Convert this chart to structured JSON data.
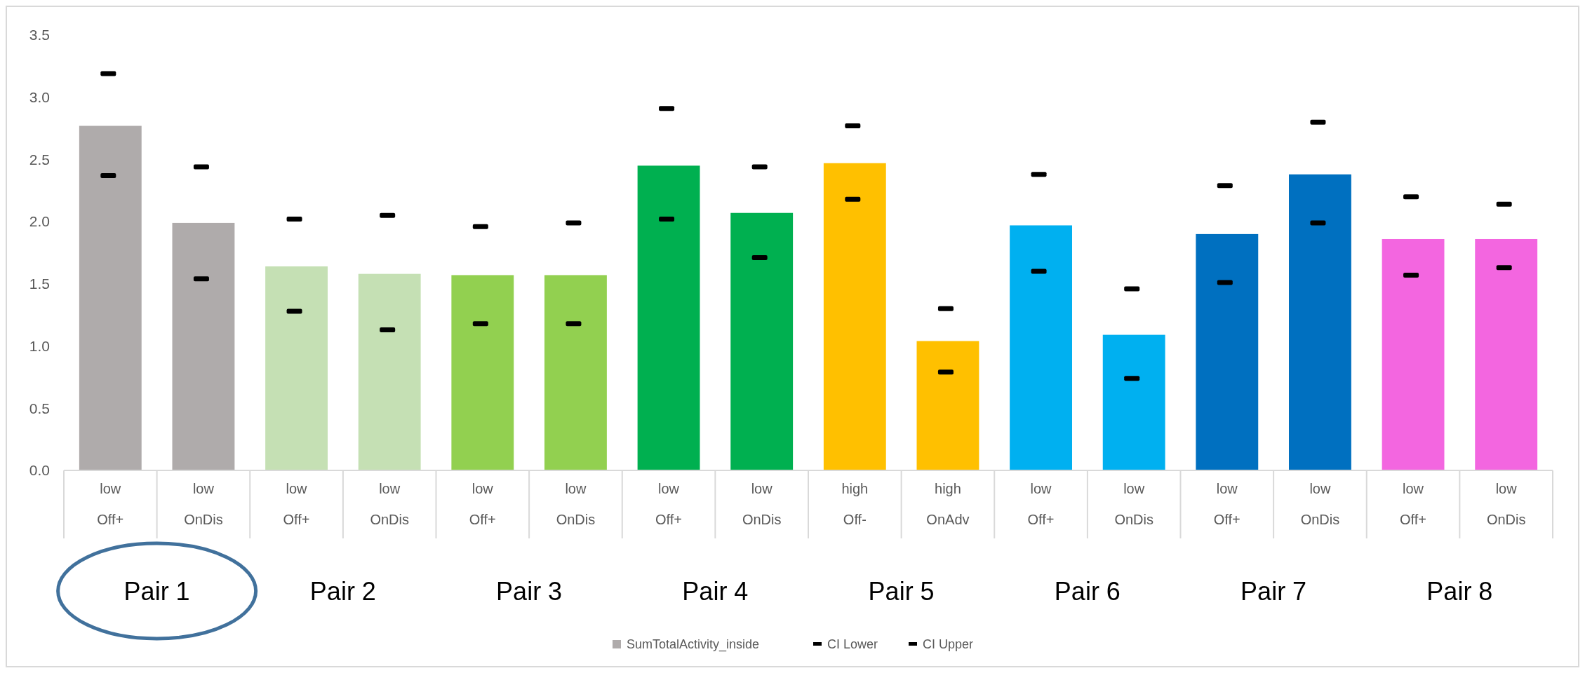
{
  "chart_data": {
    "type": "bar",
    "categories": [
      "low\nOff+",
      "low\nOnDis",
      "low\nOff+",
      "low\nOnDis",
      "low\nOff+",
      "low\nOnDis",
      "low\nOff+",
      "low\nOnDis",
      "high\nOff-",
      "high\nOnAdv",
      "low\nOff+",
      "low\nOnDis",
      "low\nOff+",
      "low\nOnDis",
      "low\nOff+",
      "low\nOnDis"
    ],
    "series": [
      {
        "name": "SumTotalActivity_inside",
        "color": "#afabab",
        "colors": [
          "#afabab",
          "#afabab",
          "#c5e0b4",
          "#c5e0b4",
          "#92d050",
          "#92d050",
          "#00b050",
          "#00b050",
          "#ffc000",
          "#ffc000",
          "#00b0f0",
          "#00b0f0",
          "#0070c0",
          "#0070c0",
          "#f366e0",
          "#f366e0"
        ],
        "values": [
          2.77,
          1.99,
          1.64,
          1.58,
          1.57,
          1.57,
          2.45,
          2.07,
          2.47,
          1.04,
          1.97,
          1.09,
          1.9,
          2.38,
          1.86,
          1.86
        ]
      },
      {
        "name": "CI Lower",
        "type": "scatter",
        "color": "#000000",
        "values": [
          2.37,
          1.54,
          1.28,
          1.13,
          1.18,
          1.18,
          2.02,
          1.71,
          2.18,
          0.79,
          1.6,
          0.74,
          1.51,
          1.99,
          1.57,
          1.63
        ]
      },
      {
        "name": "CI Upper",
        "type": "scatter",
        "color": "#000000",
        "values": [
          3.19,
          2.44,
          2.02,
          2.05,
          1.96,
          1.99,
          2.91,
          2.44,
          2.77,
          1.3,
          2.38,
          1.46,
          2.29,
          2.8,
          2.2,
          2.14
        ]
      }
    ],
    "ylim": [
      0,
      3.5
    ],
    "yticks": [
      {
        "value": 0,
        "label": "0.0"
      },
      {
        "value": 0.5,
        "label": "0.5"
      },
      {
        "value": 1,
        "label": "1.0"
      },
      {
        "value": 1.5,
        "label": "1.5"
      },
      {
        "value": 2,
        "label": "2.0"
      },
      {
        "value": 2.5,
        "label": "2.5"
      },
      {
        "value": 3,
        "label": "3.0"
      },
      {
        "value": 3.5,
        "label": "3.5"
      }
    ],
    "annotations": [
      "Pair 1",
      "Pair 2",
      "Pair 3",
      "Pair 4",
      "Pair 5",
      "Pair 6",
      "Pair 7",
      "Pair 8"
    ],
    "legend": "bottom",
    "grid": false
  }
}
